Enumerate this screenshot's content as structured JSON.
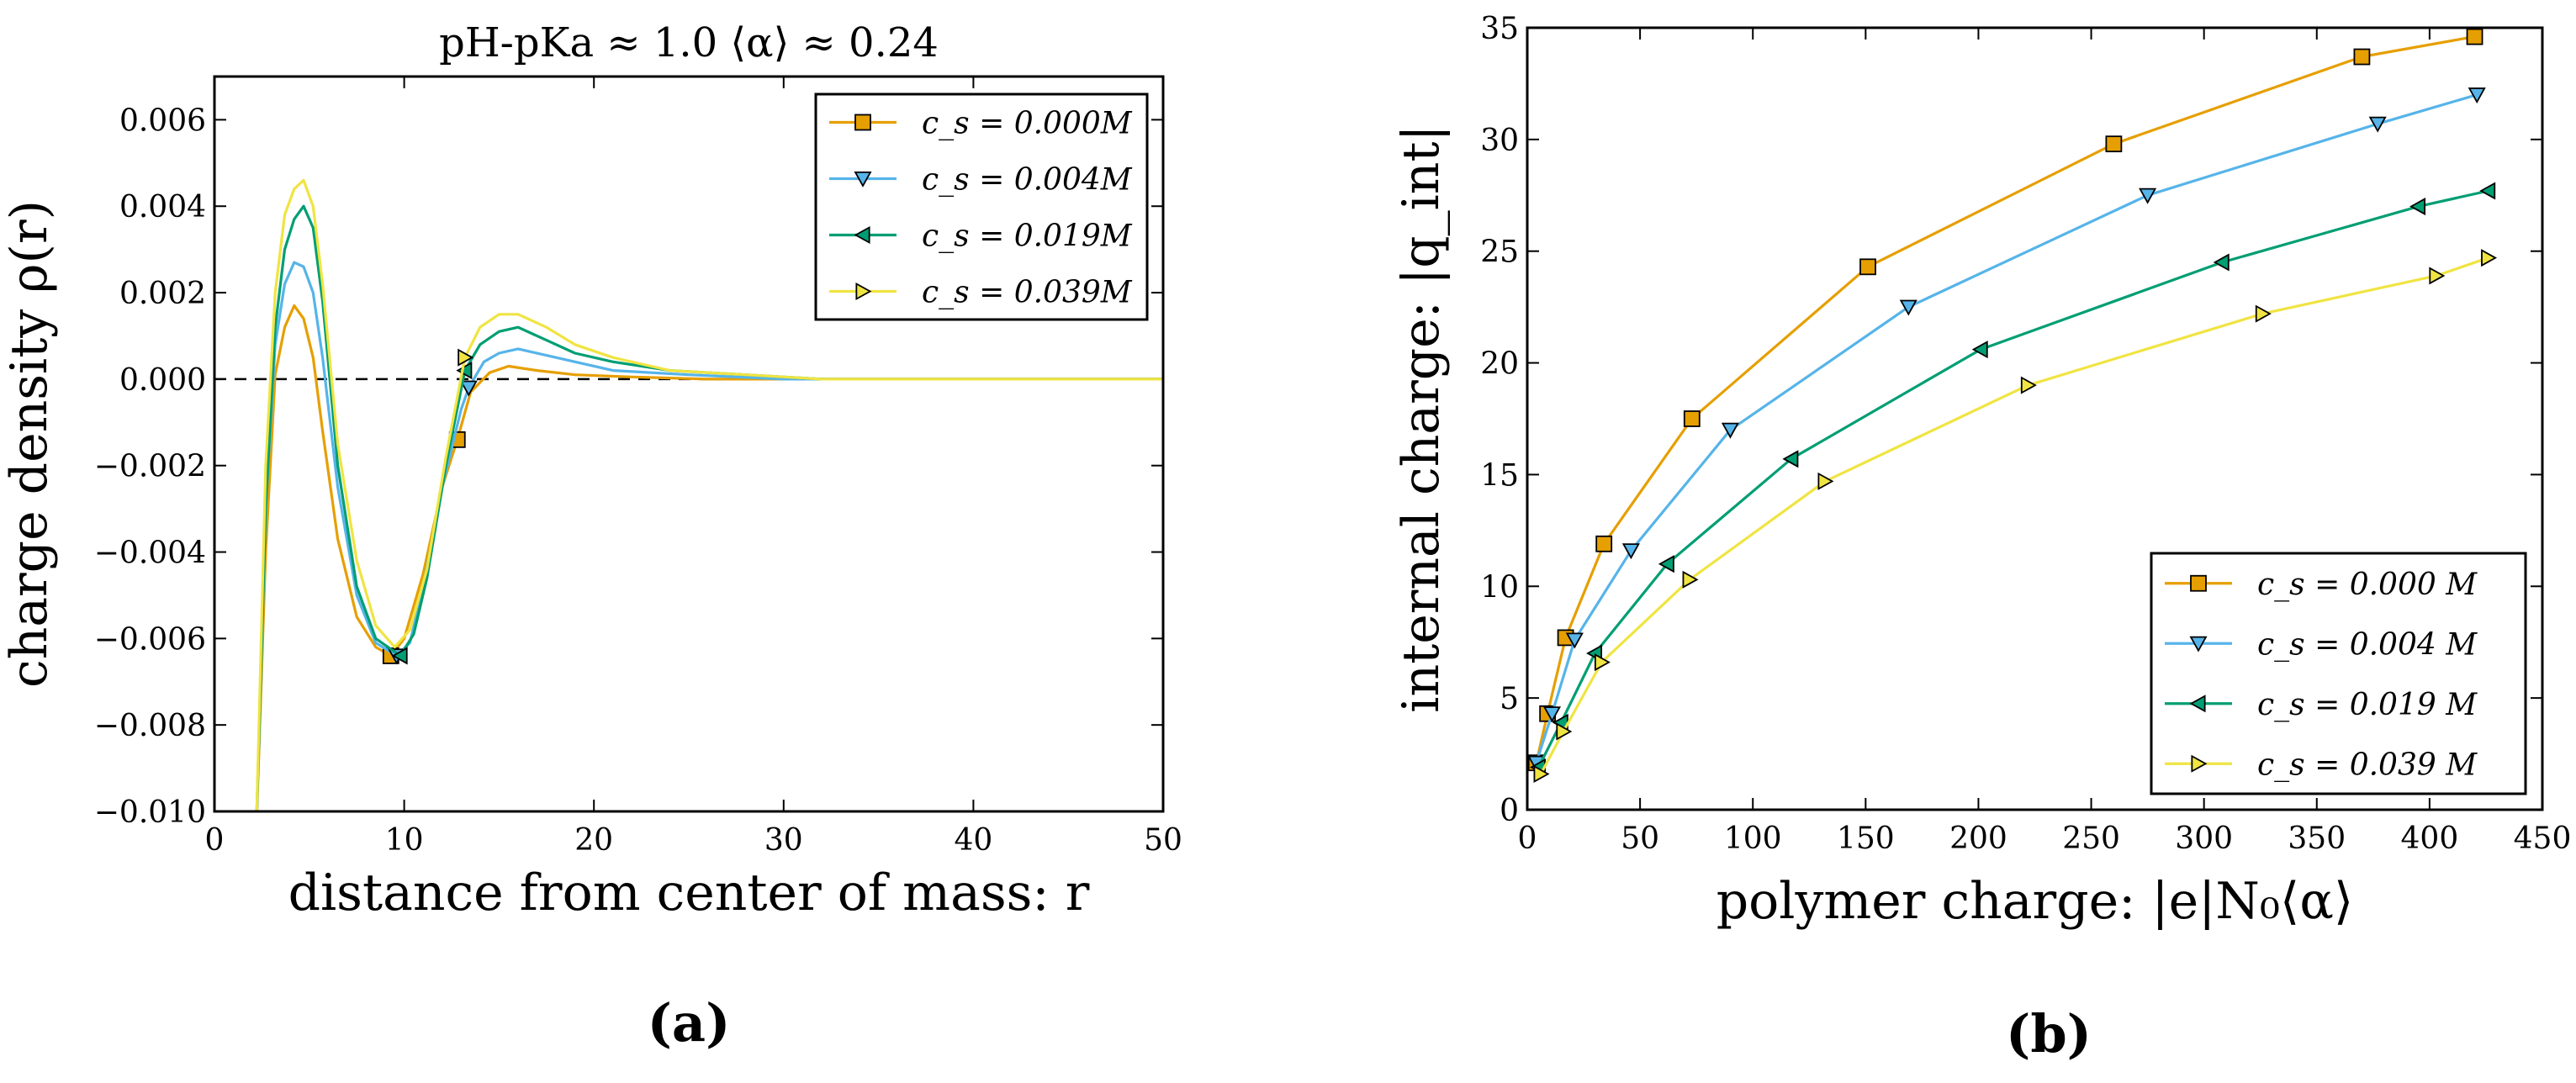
{
  "chart_data": [
    {
      "id": "a",
      "type": "line",
      "panel_label": "(a)",
      "title": "pH-pKa ≈ 1.0    ⟨α⟩ ≈ 0.24",
      "xlabel": "distance from center of mass: r",
      "ylabel": "charge density ρ(r)",
      "xlim": [
        0,
        50
      ],
      "ylim": [
        -0.01,
        0.007
      ],
      "xticks": [
        0,
        10,
        20,
        30,
        40,
        50
      ],
      "xtick_labels": [
        "0",
        "10",
        "20",
        "30",
        "40",
        "50"
      ],
      "yticks": [
        -0.01,
        -0.008,
        -0.006,
        -0.004,
        -0.002,
        0.0,
        0.002,
        0.004,
        0.006
      ],
      "ytick_labels": [
        "−0.010",
        "−0.008",
        "−0.006",
        "−0.004",
        "−0.002",
        "0.000",
        "0.002",
        "0.004",
        "0.006"
      ],
      "reference_line": {
        "y": 0,
        "style": "dashed"
      },
      "legend_position": "top-right",
      "series": [
        {
          "name": "c_s = 0.000M",
          "color": "#E69F00",
          "marker": "square",
          "x": [
            2.2,
            2.7,
            3.2,
            3.7,
            4.2,
            4.7,
            5.2,
            5.7,
            6.5,
            7.5,
            8.5,
            9.3,
            10.0,
            11.0,
            12.0,
            12.8,
            13.5,
            14.5,
            15.5,
            17,
            19,
            22,
            26,
            30,
            35,
            40,
            45,
            50
          ],
          "y": [
            -0.0105,
            -0.004,
            0.0001,
            0.0012,
            0.0017,
            0.0014,
            0.0005,
            -0.0012,
            -0.0037,
            -0.0055,
            -0.0062,
            -0.0064,
            -0.006,
            -0.0045,
            -0.0025,
            -0.0014,
            -0.0003,
            0.00015,
            0.0003,
            0.0002,
            0.0001,
            5e-05,
            0.0,
            0.0,
            0.0,
            0.0,
            0.0,
            0.0
          ],
          "marker_x": [
            9.3,
            12.8
          ],
          "marker_y": [
            -0.0064,
            -0.0014
          ]
        },
        {
          "name": "c_s = 0.004M",
          "color": "#56B4E9",
          "marker": "triangle-down",
          "x": [
            2.2,
            2.7,
            3.2,
            3.7,
            4.2,
            4.7,
            5.2,
            5.7,
            6.5,
            7.5,
            8.5,
            9.6,
            10.3,
            11.0,
            12.0,
            13.0,
            13.4,
            14.2,
            15.0,
            16,
            18,
            21,
            25,
            30,
            35,
            40,
            45,
            50
          ],
          "y": [
            -0.0105,
            -0.003,
            0.0008,
            0.0022,
            0.0027,
            0.0026,
            0.002,
            0.0005,
            -0.0025,
            -0.005,
            -0.0061,
            -0.0064,
            -0.0061,
            -0.0048,
            -0.0025,
            -0.0007,
            -0.0002,
            0.0004,
            0.0006,
            0.0007,
            0.0005,
            0.0002,
            0.0001,
            0.0,
            0.0,
            0.0,
            0.0,
            0.0
          ],
          "marker_x": [
            9.6,
            13.4
          ],
          "marker_y": [
            -0.0064,
            -0.0002
          ]
        },
        {
          "name": "c_s = 0.019M",
          "color": "#009E73",
          "marker": "triangle-left",
          "x": [
            2.2,
            2.7,
            3.2,
            3.7,
            4.2,
            4.7,
            5.2,
            5.7,
            6.5,
            7.5,
            8.5,
            9.8,
            10.5,
            11.2,
            12.2,
            13.2,
            14.0,
            15.0,
            16.0,
            17.5,
            19,
            21,
            24,
            28,
            32,
            38,
            45,
            50
          ],
          "y": [
            -0.0105,
            -0.003,
            0.0012,
            0.003,
            0.0037,
            0.004,
            0.0035,
            0.0018,
            -0.002,
            -0.0048,
            -0.006,
            -0.0064,
            -0.0059,
            -0.0046,
            -0.002,
            0.0002,
            0.0008,
            0.0011,
            0.0012,
            0.0009,
            0.0006,
            0.0004,
            0.0002,
            0.0001,
            0.0,
            0.0,
            0.0,
            0.0
          ],
          "marker_x": [
            9.8,
            13.2
          ],
          "marker_y": [
            -0.0064,
            0.0002
          ]
        },
        {
          "name": "c_s = 0.039M",
          "color": "#F0E442",
          "marker": "triangle-right",
          "x": [
            2.2,
            2.7,
            3.2,
            3.7,
            4.2,
            4.7,
            5.2,
            5.7,
            6.5,
            7.5,
            8.5,
            9.5,
            10.3,
            11.2,
            12.2,
            13.2,
            14.0,
            15.0,
            16.0,
            17.5,
            19,
            21,
            24,
            28,
            32,
            38,
            45,
            50
          ],
          "y": [
            -0.0105,
            -0.002,
            0.002,
            0.0038,
            0.0044,
            0.0046,
            0.004,
            0.0022,
            -0.0015,
            -0.0042,
            -0.0057,
            -0.0062,
            -0.0058,
            -0.0044,
            -0.0018,
            0.0005,
            0.0012,
            0.0015,
            0.0015,
            0.0012,
            0.0008,
            0.0005,
            0.0002,
            0.0001,
            0.0,
            0.0,
            0.0,
            0.0
          ],
          "marker_x": [
            13.2
          ],
          "marker_y": [
            0.0005
          ]
        }
      ]
    },
    {
      "id": "b",
      "type": "line",
      "panel_label": "(b)",
      "title": "",
      "xlabel": "polymer charge: |e|N₀⟨α⟩",
      "ylabel": "internal charge: |q_int|",
      "xlim": [
        0,
        450
      ],
      "ylim": [
        0,
        35
      ],
      "xticks": [
        0,
        50,
        100,
        150,
        200,
        250,
        300,
        350,
        400,
        450
      ],
      "xtick_labels": [
        "0",
        "50",
        "100",
        "150",
        "200",
        "250",
        "300",
        "350",
        "400",
        "450"
      ],
      "yticks": [
        0,
        5,
        10,
        15,
        20,
        25,
        30,
        35
      ],
      "ytick_labels": [
        "0",
        "5",
        "10",
        "15",
        "20",
        "25",
        "30",
        "35"
      ],
      "legend_position": "lower-right",
      "series": [
        {
          "name": "c_s = 0.000 M",
          "color": "#E69F00",
          "marker": "square",
          "x": [
            4,
            9,
            17,
            34,
            73,
            151,
            260,
            370,
            420
          ],
          "y": [
            2.1,
            4.3,
            7.7,
            11.9,
            17.5,
            24.3,
            29.8,
            33.7,
            34.6
          ]
        },
        {
          "name": "c_s = 0.004 M",
          "color": "#56B4E9",
          "marker": "triangle-down",
          "x": [
            4,
            11,
            21,
            46,
            90,
            169,
            275,
            377,
            421
          ],
          "y": [
            2.1,
            4.3,
            7.6,
            11.6,
            17.0,
            22.5,
            27.5,
            30.7,
            32.0
          ]
        },
        {
          "name": "c_s = 0.019 M",
          "color": "#009E73",
          "marker": "triangle-left",
          "x": [
            5,
            15,
            30,
            62,
            117,
            201,
            308,
            395,
            426
          ],
          "y": [
            1.9,
            3.9,
            7.0,
            11.0,
            15.7,
            20.6,
            24.5,
            27.0,
            27.7
          ]
        },
        {
          "name": "c_s = 0.039 M",
          "color": "#F0E442",
          "marker": "triangle-right",
          "x": [
            6,
            16,
            33,
            72,
            132,
            222,
            326,
            403,
            426
          ],
          "y": [
            1.6,
            3.5,
            6.6,
            10.3,
            14.7,
            19.0,
            22.2,
            23.9,
            24.7
          ]
        }
      ]
    }
  ]
}
